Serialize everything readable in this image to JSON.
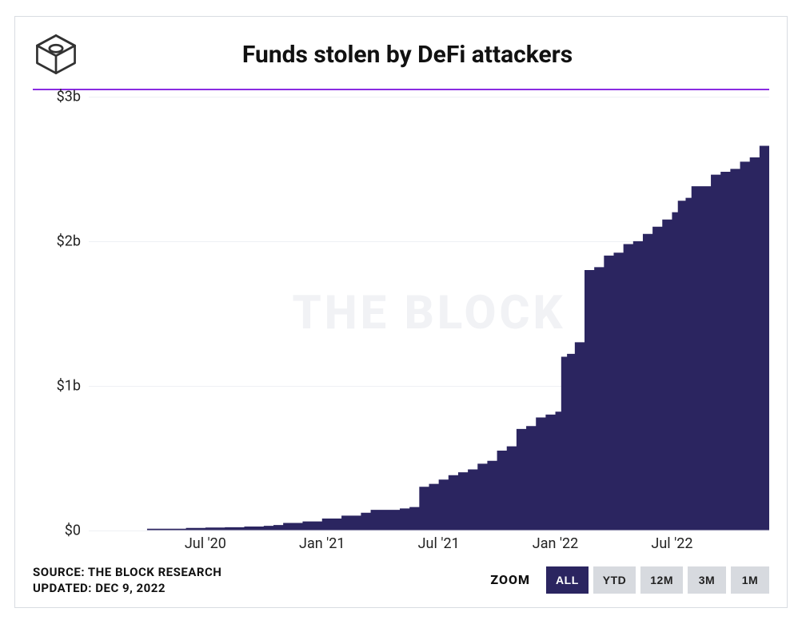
{
  "title": "Funds stolen by DeFi attackers",
  "watermark": "THE BLOCK",
  "source_line": "SOURCE: THE BLOCK RESEARCH",
  "updated_line": "UPDATED: DEC 9, 2022",
  "colors": {
    "accent_line": "#8a2be2",
    "area_fill": "#2b2560",
    "grid": "#eef0f4",
    "btn_inactive_bg": "#d7dadf",
    "btn_inactive_fg": "#222222",
    "btn_active_bg": "#2b2560",
    "btn_active_fg": "#ffffff",
    "text": "#111111",
    "logo_stroke": "#323232"
  },
  "chart": {
    "type": "area",
    "y": {
      "min": 0,
      "max": 3,
      "ticks": [
        0,
        1,
        2,
        3
      ],
      "tick_labels": [
        "$0",
        "$1b",
        "$2b",
        "$3b"
      ],
      "label_fontsize": 18
    },
    "x": {
      "min": 0,
      "max": 35,
      "tick_positions": [
        6,
        12,
        18,
        24,
        30
      ],
      "tick_labels": [
        "Jul '20",
        "Jan '21",
        "Jul '21",
        "Jan '22",
        "Jul '22"
      ],
      "label_fontsize": 18
    },
    "series": {
      "points_x": [
        0,
        1,
        2,
        3,
        4,
        5,
        6,
        7,
        8,
        9,
        9.5,
        10,
        11,
        12,
        13,
        14,
        14.5,
        15,
        16,
        16.5,
        17,
        17.5,
        18,
        18.5,
        19,
        19.5,
        20,
        20.5,
        21,
        21.5,
        22,
        22.5,
        23,
        23.5,
        24,
        24.3,
        24.6,
        25,
        25.5,
        26,
        26.5,
        27,
        27.5,
        28,
        28.5,
        29,
        29.5,
        30,
        30.3,
        30.7,
        31,
        31.5,
        32,
        32.5,
        33,
        33.5,
        34,
        34.5,
        35
      ],
      "points_y": [
        0.0,
        0.0,
        0.0,
        0.01,
        0.01,
        0.015,
        0.018,
        0.02,
        0.025,
        0.03,
        0.035,
        0.05,
        0.06,
        0.08,
        0.1,
        0.12,
        0.14,
        0.14,
        0.15,
        0.16,
        0.3,
        0.32,
        0.35,
        0.38,
        0.4,
        0.42,
        0.46,
        0.48,
        0.55,
        0.58,
        0.7,
        0.72,
        0.78,
        0.8,
        0.82,
        1.2,
        1.22,
        1.3,
        1.8,
        1.82,
        1.9,
        1.92,
        1.98,
        2.0,
        2.05,
        2.1,
        2.15,
        2.2,
        2.28,
        2.3,
        2.38,
        2.38,
        2.46,
        2.48,
        2.5,
        2.55,
        2.58,
        2.66,
        2.68
      ]
    },
    "title_fontsize": 30
  },
  "zoom": {
    "label": "ZOOM",
    "buttons": [
      {
        "label": "ALL",
        "active": true
      },
      {
        "label": "YTD",
        "active": false
      },
      {
        "label": "12M",
        "active": false
      },
      {
        "label": "3M",
        "active": false
      },
      {
        "label": "1M",
        "active": false
      }
    ]
  }
}
